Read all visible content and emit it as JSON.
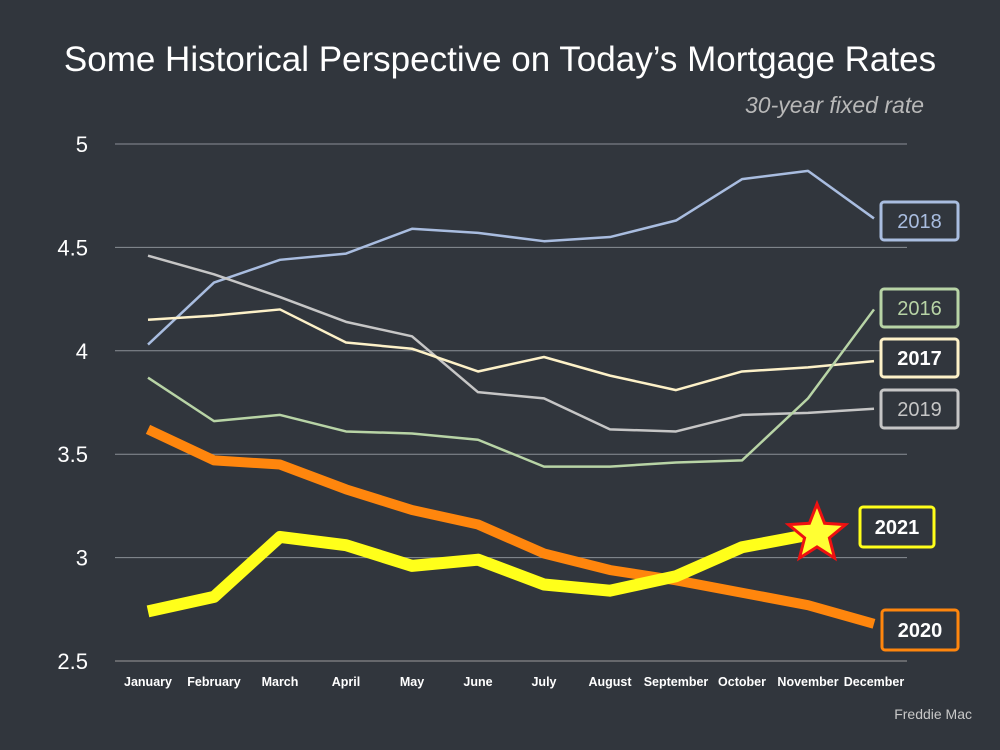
{
  "title": "Some Historical Perspective on Today’s Mortgage Rates",
  "subtitle": "30-year fixed rate",
  "source": "Freddie Mac",
  "chart_data": {
    "type": "line",
    "title": "Some Historical Perspective on Today’s Mortgage Rates",
    "subtitle": "30-year fixed rate",
    "xlabel": "",
    "ylabel": "",
    "ylim": [
      2.5,
      5
    ],
    "yticks": [
      "5",
      "4.5",
      "4",
      "3.5",
      "3",
      "2.5"
    ],
    "grid": true,
    "categories": [
      "January",
      "February",
      "March",
      "April",
      "May",
      "June",
      "July",
      "August",
      "September",
      "October",
      "November",
      "December"
    ],
    "series": [
      {
        "name": "2018",
        "color": "#a9bde0",
        "values": [
          4.03,
          4.33,
          4.44,
          4.47,
          4.59,
          4.57,
          4.53,
          4.55,
          4.63,
          4.83,
          4.87,
          4.64
        ]
      },
      {
        "name": "2019",
        "color": "#c6c6c6",
        "values": [
          4.46,
          4.37,
          4.26,
          4.14,
          4.07,
          3.8,
          3.77,
          3.62,
          3.61,
          3.69,
          3.7,
          3.72
        ]
      },
      {
        "name": "2017",
        "color": "#fdf1c8",
        "values": [
          4.15,
          4.17,
          4.2,
          4.04,
          4.01,
          3.9,
          3.97,
          3.88,
          3.81,
          3.9,
          3.92,
          3.95
        ]
      },
      {
        "name": "2016",
        "color": "#b8d4a6",
        "values": [
          3.87,
          3.66,
          3.69,
          3.61,
          3.6,
          3.57,
          3.44,
          3.44,
          3.46,
          3.47,
          3.77,
          4.2
        ]
      },
      {
        "name": "2020",
        "color": "#ff860d",
        "values": [
          3.62,
          3.47,
          3.45,
          3.33,
          3.23,
          3.16,
          3.02,
          2.94,
          2.89,
          2.83,
          2.77,
          2.68
        ]
      },
      {
        "name": "2021",
        "color": "#ffff1a",
        "values": [
          2.74,
          2.81,
          3.1,
          3.06,
          2.96,
          2.99,
          2.87,
          2.84,
          2.91,
          3.05,
          3.11,
          null
        ]
      }
    ],
    "annotations": [
      {
        "type": "star",
        "series": "2021",
        "category": "November"
      }
    ]
  }
}
